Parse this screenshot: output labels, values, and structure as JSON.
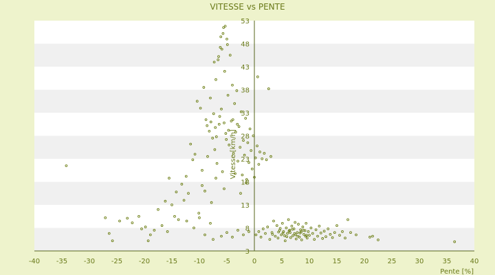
{
  "chart_data": {
    "type": "scatter",
    "title": "VITESSE vs PENTE",
    "xlabel": "Pente [%]",
    "ylabel": "Vitesse [km/h]",
    "xlim": [
      -40,
      40
    ],
    "ylim": [
      3,
      53
    ],
    "x_ticks": [
      "-40",
      "-35",
      "-30",
      "-25",
      "-20",
      "-15",
      "-10",
      "-5",
      "0",
      "5",
      "10",
      "15",
      "20",
      "25",
      "30",
      "35",
      "40"
    ],
    "y_ticks": [
      "3",
      "8",
      "13",
      "18",
      "23",
      "28",
      "33",
      "38",
      "43",
      "48",
      "53"
    ],
    "grid": "horizontal bands",
    "legend": "none",
    "point_color": "#6b7d12",
    "colors": {
      "background": "#eef3cc",
      "plot_band_light": "#ffffff",
      "plot_band_dark": "#f0f0f0",
      "axis": "#55651a",
      "text": "#6a7a1a"
    },
    "series": [
      {
        "values": [
          [
            -34.2,
            21.5
          ],
          [
            36.4,
            5.0
          ],
          [
            -27.1,
            10.2
          ],
          [
            -26.4,
            6.8
          ],
          [
            -25.8,
            5.2
          ],
          [
            -24.5,
            9.5
          ],
          [
            -23.1,
            10.1
          ],
          [
            -22.2,
            9.1
          ],
          [
            -21.0,
            10.5
          ],
          [
            -20.5,
            7.8
          ],
          [
            -19.8,
            8.2
          ],
          [
            -19.3,
            5.2
          ],
          [
            -18.9,
            6.5
          ],
          [
            -18.2,
            7.5
          ],
          [
            -17.5,
            12.0
          ],
          [
            -16.8,
            8.5
          ],
          [
            -16.2,
            13.8
          ],
          [
            -15.5,
            18.8
          ],
          [
            -15.0,
            13.0
          ],
          [
            -14.5,
            10.5
          ],
          [
            -14.2,
            15.8
          ],
          [
            -13.8,
            9.8
          ],
          [
            -13.2,
            17.5
          ],
          [
            -12.8,
            14.0
          ],
          [
            -12.4,
            19.2
          ],
          [
            -12.0,
            15.5
          ],
          [
            -11.6,
            26.2
          ],
          [
            -11.2,
            22.8
          ],
          [
            -10.8,
            24.0
          ],
          [
            -10.4,
            35.5
          ],
          [
            -10.1,
            11.2
          ],
          [
            -9.8,
            34.0
          ],
          [
            -9.5,
            20.5
          ],
          [
            -9.2,
            38.5
          ],
          [
            -9.0,
            16.0
          ],
          [
            -8.8,
            31.5
          ],
          [
            -8.5,
            23.5
          ],
          [
            -8.2,
            29.0
          ],
          [
            -8.0,
            36.2
          ],
          [
            -7.8,
            13.5
          ],
          [
            -7.6,
            27.5
          ],
          [
            -7.4,
            32.8
          ],
          [
            -7.2,
            25.0
          ],
          [
            -7.0,
            40.2
          ],
          [
            -6.8,
            22.0
          ],
          [
            -6.6,
            44.5
          ],
          [
            -6.4,
            30.5
          ],
          [
            -6.2,
            47.2
          ],
          [
            -6.0,
            33.8
          ],
          [
            -5.8,
            20.2
          ],
          [
            -5.6,
            51.5
          ],
          [
            -5.4,
            42.0
          ],
          [
            -5.2,
            28.5
          ],
          [
            -5.0,
            49.0
          ],
          [
            -4.8,
            36.8
          ],
          [
            -4.6,
            26.0
          ],
          [
            -4.4,
            45.5
          ],
          [
            -4.2,
            31.2
          ],
          [
            -4.0,
            39.0
          ],
          [
            -3.8,
            24.2
          ],
          [
            -3.6,
            35.0
          ],
          [
            -3.4,
            28.8
          ],
          [
            -3.2,
            37.8
          ],
          [
            -3.0,
            22.5
          ],
          [
            -2.8,
            30.0
          ],
          [
            -2.6,
            25.5
          ],
          [
            -2.4,
            33.2
          ],
          [
            -2.2,
            19.5
          ],
          [
            -2.0,
            27.0
          ],
          [
            -1.8,
            23.8
          ],
          [
            -1.6,
            31.8
          ],
          [
            -1.4,
            18.5
          ],
          [
            -1.2,
            26.5
          ],
          [
            -1.0,
            22.2
          ],
          [
            -0.8,
            29.5
          ],
          [
            -0.6,
            24.8
          ],
          [
            -0.4,
            20.8
          ],
          [
            -0.2,
            28.0
          ],
          [
            0.2,
            23.2
          ],
          [
            0.5,
            25.8
          ],
          [
            0.8,
            21.8
          ],
          [
            0.6,
            40.8
          ],
          [
            1.0,
            24.5
          ],
          [
            1.4,
            23.0
          ],
          [
            1.8,
            24.2
          ],
          [
            2.2,
            22.8
          ],
          [
            2.6,
            38.2
          ],
          [
            3.0,
            23.5
          ],
          [
            -6.1,
            49.5
          ],
          [
            -5.7,
            50.2
          ],
          [
            -5.3,
            51.8
          ],
          [
            -5.9,
            46.8
          ],
          [
            -6.5,
            45.2
          ],
          [
            -7.3,
            44.0
          ],
          [
            -4.9,
            47.8
          ],
          [
            -8.6,
            30.2
          ],
          [
            -7.9,
            31.0
          ],
          [
            -7.1,
            29.8
          ],
          [
            -6.3,
            32.2
          ],
          [
            -5.5,
            30.8
          ],
          [
            -4.7,
            29.2
          ],
          [
            -3.9,
            31.5
          ],
          [
            -3.1,
            30.5
          ],
          [
            -6.9,
            27.8
          ],
          [
            -5.1,
            27.2
          ],
          [
            -12.3,
            9.5
          ],
          [
            -11.0,
            8.0
          ],
          [
            -9.0,
            6.5
          ],
          [
            -7.5,
            5.5
          ],
          [
            -6.0,
            6.2
          ],
          [
            -5.0,
            7.0
          ],
          [
            -4.0,
            6.0
          ],
          [
            -3.0,
            7.5
          ],
          [
            -2.0,
            6.5
          ],
          [
            -1.0,
            7.2
          ],
          [
            -10.0,
            10.2
          ],
          [
            -8.0,
            9.0
          ],
          [
            -15.8,
            7.2
          ],
          [
            -9.5,
            17.2
          ],
          [
            -7.0,
            18.8
          ],
          [
            -5.5,
            16.5
          ],
          [
            -3.5,
            19.8
          ],
          [
            -2.5,
            15.5
          ],
          [
            -1.5,
            17.8
          ],
          [
            0.0,
            19.0
          ],
          [
            0.3,
            6.5
          ],
          [
            0.8,
            7.2
          ],
          [
            1.2,
            6.0
          ],
          [
            1.6,
            7.8
          ],
          [
            2.0,
            6.8
          ],
          [
            2.4,
            8.2
          ],
          [
            2.8,
            5.5
          ],
          [
            3.2,
            7.0
          ],
          [
            3.5,
            9.5
          ],
          [
            3.8,
            6.2
          ],
          [
            4.1,
            8.5
          ],
          [
            4.3,
            5.8
          ],
          [
            4.6,
            7.5
          ],
          [
            4.9,
            6.5
          ],
          [
            5.1,
            9.0
          ],
          [
            5.3,
            7.2
          ],
          [
            5.6,
            5.2
          ],
          [
            5.8,
            8.0
          ],
          [
            6.0,
            6.8
          ],
          [
            6.2,
            9.8
          ],
          [
            6.4,
            7.5
          ],
          [
            6.6,
            5.9
          ],
          [
            6.8,
            8.4
          ],
          [
            7.0,
            6.3
          ],
          [
            7.2,
            7.8
          ],
          [
            7.4,
            9.2
          ],
          [
            7.6,
            5.6
          ],
          [
            7.8,
            7.0
          ],
          [
            8.0,
            8.8
          ],
          [
            8.2,
            6.0
          ],
          [
            8.4,
            7.6
          ],
          [
            8.6,
            5.4
          ],
          [
            8.8,
            8.2
          ],
          [
            9.0,
            6.6
          ],
          [
            9.2,
            7.4
          ],
          [
            9.4,
            9.0
          ],
          [
            9.6,
            5.8
          ],
          [
            9.8,
            7.2
          ],
          [
            10.0,
            6.4
          ],
          [
            10.3,
            8.0
          ],
          [
            10.6,
            6.8
          ],
          [
            10.9,
            5.5
          ],
          [
            11.2,
            7.6
          ],
          [
            11.5,
            6.2
          ],
          [
            11.8,
            8.4
          ],
          [
            12.1,
            6.9
          ],
          [
            12.4,
            5.7
          ],
          [
            12.7,
            7.3
          ],
          [
            13.0,
            6.1
          ],
          [
            13.4,
            7.8
          ],
          [
            13.8,
            6.6
          ],
          [
            14.2,
            5.9
          ],
          [
            14.6,
            7.0
          ],
          [
            15.0,
            8.5
          ],
          [
            15.5,
            6.4
          ],
          [
            16.0,
            7.2
          ],
          [
            16.5,
            5.8
          ],
          [
            17.0,
            9.8
          ],
          [
            17.5,
            7.0
          ],
          [
            18.5,
            6.5
          ],
          [
            21.0,
            6.0
          ],
          [
            21.5,
            6.2
          ],
          [
            22.5,
            5.4
          ],
          [
            3.3,
            6.6
          ],
          [
            4.4,
            7.1
          ],
          [
            5.5,
            6.3
          ],
          [
            6.5,
            7.0
          ],
          [
            7.5,
            6.5
          ],
          [
            8.5,
            7.1
          ],
          [
            9.5,
            6.4
          ],
          [
            4.7,
            7.9
          ],
          [
            5.9,
            6.1
          ],
          [
            6.9,
            7.7
          ],
          [
            7.9,
            6.2
          ],
          [
            8.9,
            7.5
          ],
          [
            5.2,
            6.9
          ],
          [
            6.3,
            7.3
          ],
          [
            7.3,
            6.8
          ],
          [
            8.3,
            6.9
          ],
          [
            9.3,
            6.2
          ]
        ]
      }
    ]
  }
}
